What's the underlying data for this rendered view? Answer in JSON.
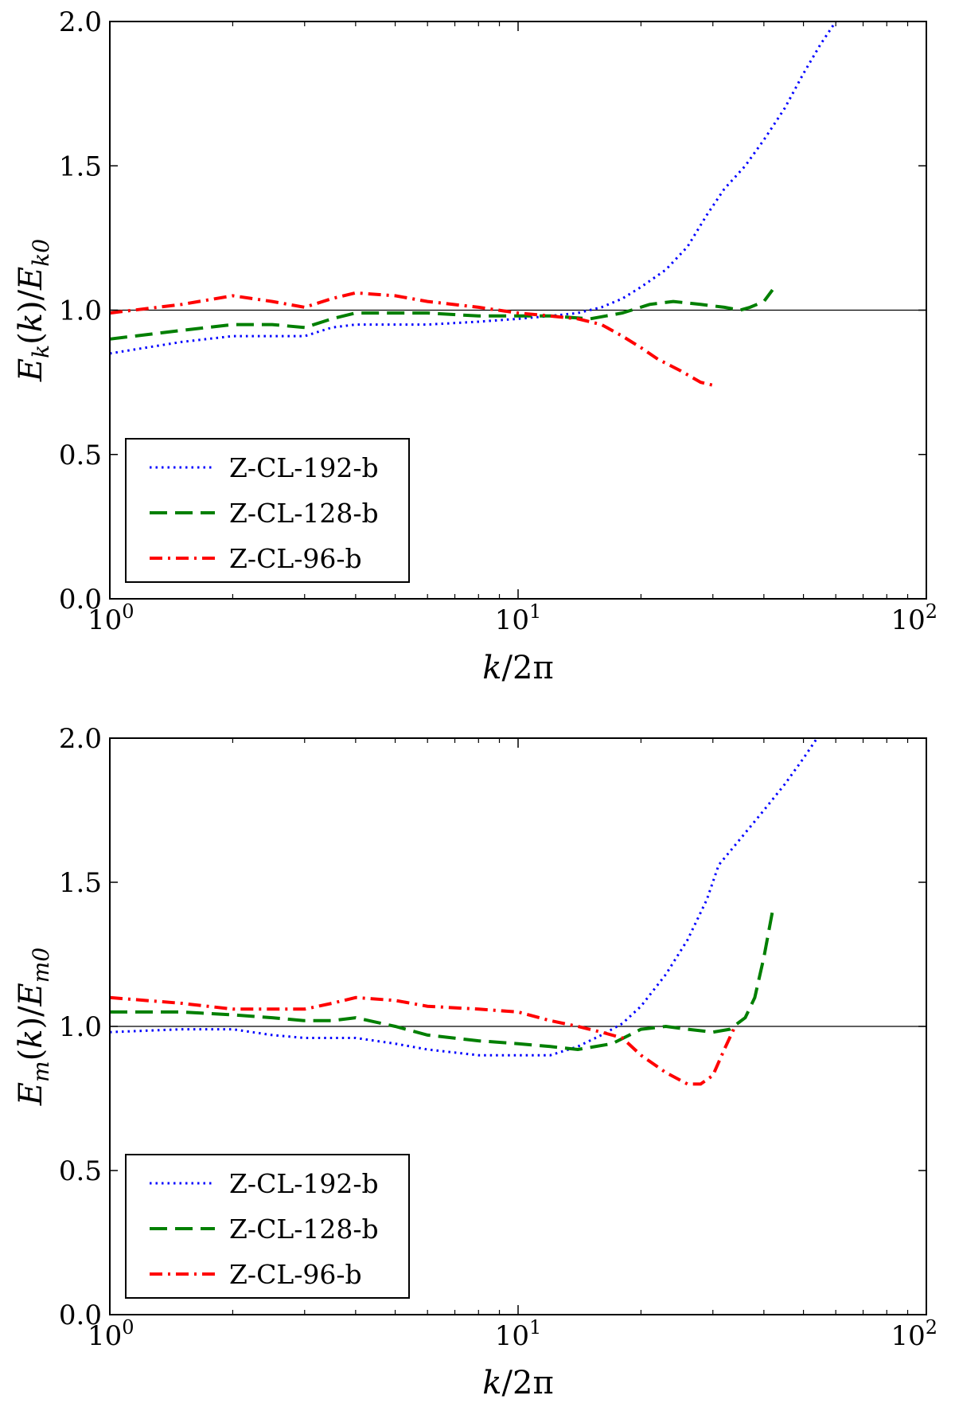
{
  "chart_data": [
    {
      "type": "line",
      "title": "",
      "xlabel": "k/2π",
      "ylabel": "E_k(k)/E_k0",
      "x_scale": "log",
      "xlim": [
        1,
        100
      ],
      "ylim": [
        0,
        2.0
      ],
      "x_ticks": [
        {
          "value": 1,
          "base": "10",
          "exp": "0"
        },
        {
          "value": 10,
          "base": "10",
          "exp": "1"
        },
        {
          "value": 100,
          "base": "10",
          "exp": "2"
        }
      ],
      "y_ticks": [
        "0.0",
        "0.5",
        "1.0",
        "1.5",
        "2.0"
      ],
      "grid": false,
      "legend_position": "lower-left",
      "reference_line": {
        "y": 1.0,
        "color": "#000000"
      },
      "series": [
        {
          "name": "Z-CL-192-b",
          "color": "#0000ff",
          "style": "dotted",
          "points": [
            [
              1,
              0.85
            ],
            [
              1.5,
              0.89
            ],
            [
              2,
              0.91
            ],
            [
              2.5,
              0.91
            ],
            [
              3,
              0.91
            ],
            [
              3.5,
              0.94
            ],
            [
              4,
              0.95
            ],
            [
              5,
              0.95
            ],
            [
              6,
              0.95
            ],
            [
              8,
              0.96
            ],
            [
              10,
              0.97
            ],
            [
              12,
              0.98
            ],
            [
              14,
              0.99
            ],
            [
              16,
              1.01
            ],
            [
              18,
              1.04
            ],
            [
              20,
              1.08
            ],
            [
              23,
              1.14
            ],
            [
              26,
              1.22
            ],
            [
              29,
              1.33
            ],
            [
              32,
              1.42
            ],
            [
              36,
              1.5
            ],
            [
              40,
              1.59
            ],
            [
              45,
              1.7
            ],
            [
              50,
              1.82
            ],
            [
              55,
              1.92
            ],
            [
              60,
              2.0
            ]
          ]
        },
        {
          "name": "Z-CL-128-b",
          "color": "#007f00",
          "style": "dashed",
          "points": [
            [
              1,
              0.9
            ],
            [
              1.5,
              0.93
            ],
            [
              2,
              0.95
            ],
            [
              2.5,
              0.95
            ],
            [
              3,
              0.94
            ],
            [
              3.5,
              0.97
            ],
            [
              4,
              0.99
            ],
            [
              5,
              0.99
            ],
            [
              6,
              0.99
            ],
            [
              8,
              0.98
            ],
            [
              10,
              0.98
            ],
            [
              12,
              0.98
            ],
            [
              15,
              0.97
            ],
            [
              18,
              0.99
            ],
            [
              21,
              1.02
            ],
            [
              24,
              1.03
            ],
            [
              28,
              1.02
            ],
            [
              32,
              1.01
            ],
            [
              35,
              1.0
            ],
            [
              37,
              1.01
            ],
            [
              40,
              1.03
            ],
            [
              42,
              1.07
            ]
          ]
        },
        {
          "name": "Z-CL-96-b",
          "color": "#ff0000",
          "style": "dashdot",
          "points": [
            [
              1,
              0.99
            ],
            [
              1.5,
              1.02
            ],
            [
              2,
              1.05
            ],
            [
              2.5,
              1.03
            ],
            [
              3,
              1.01
            ],
            [
              3.5,
              1.04
            ],
            [
              4,
              1.06
            ],
            [
              5,
              1.05
            ],
            [
              6,
              1.03
            ],
            [
              8,
              1.01
            ],
            [
              10,
              0.99
            ],
            [
              12,
              0.98
            ],
            [
              14,
              0.97
            ],
            [
              16,
              0.95
            ],
            [
              18,
              0.91
            ],
            [
              20,
              0.87
            ],
            [
              22,
              0.83
            ],
            [
              25,
              0.79
            ],
            [
              28,
              0.75
            ],
            [
              30,
              0.74
            ]
          ]
        }
      ]
    },
    {
      "type": "line",
      "title": "",
      "xlabel": "k/2π",
      "ylabel": "E_m(k)/E_m0",
      "x_scale": "log",
      "xlim": [
        1,
        100
      ],
      "ylim": [
        0,
        2.0
      ],
      "x_ticks": [
        {
          "value": 1,
          "base": "10",
          "exp": "0"
        },
        {
          "value": 10,
          "base": "10",
          "exp": "1"
        },
        {
          "value": 100,
          "base": "10",
          "exp": "2"
        }
      ],
      "y_ticks": [
        "0.0",
        "0.5",
        "1.0",
        "1.5",
        "2.0"
      ],
      "grid": false,
      "legend_position": "lower-left",
      "reference_line": {
        "y": 1.0,
        "color": "#000000"
      },
      "series": [
        {
          "name": "Z-CL-192-b",
          "color": "#0000ff",
          "style": "dotted",
          "points": [
            [
              1,
              0.98
            ],
            [
              1.5,
              0.99
            ],
            [
              2,
              0.99
            ],
            [
              2.5,
              0.97
            ],
            [
              3,
              0.96
            ],
            [
              3.5,
              0.96
            ],
            [
              4,
              0.96
            ],
            [
              5,
              0.94
            ],
            [
              6,
              0.92
            ],
            [
              8,
              0.9
            ],
            [
              10,
              0.9
            ],
            [
              12,
              0.9
            ],
            [
              14,
              0.93
            ],
            [
              16,
              0.97
            ],
            [
              18,
              1.01
            ],
            [
              20,
              1.07
            ],
            [
              23,
              1.18
            ],
            [
              26,
              1.3
            ],
            [
              29,
              1.44
            ],
            [
              31,
              1.56
            ],
            [
              35,
              1.65
            ],
            [
              40,
              1.75
            ],
            [
              45,
              1.84
            ],
            [
              50,
              1.93
            ],
            [
              54,
              2.0
            ]
          ]
        },
        {
          "name": "Z-CL-128-b",
          "color": "#007f00",
          "style": "dashed",
          "points": [
            [
              1,
              1.05
            ],
            [
              1.5,
              1.05
            ],
            [
              2,
              1.04
            ],
            [
              2.5,
              1.03
            ],
            [
              3,
              1.02
            ],
            [
              3.5,
              1.02
            ],
            [
              4,
              1.03
            ],
            [
              5,
              1.0
            ],
            [
              6,
              0.97
            ],
            [
              8,
              0.95
            ],
            [
              10,
              0.94
            ],
            [
              12,
              0.93
            ],
            [
              14,
              0.92
            ],
            [
              17,
              0.94
            ],
            [
              20,
              0.99
            ],
            [
              23,
              1.0
            ],
            [
              26,
              0.99
            ],
            [
              30,
              0.98
            ],
            [
              33,
              0.99
            ],
            [
              36,
              1.03
            ],
            [
              38,
              1.1
            ],
            [
              40,
              1.24
            ],
            [
              42,
              1.4
            ]
          ]
        },
        {
          "name": "Z-CL-96-b",
          "color": "#ff0000",
          "style": "dashdot",
          "points": [
            [
              1,
              1.1
            ],
            [
              1.5,
              1.08
            ],
            [
              2,
              1.06
            ],
            [
              2.5,
              1.06
            ],
            [
              3,
              1.06
            ],
            [
              3.5,
              1.08
            ],
            [
              4,
              1.1
            ],
            [
              5,
              1.09
            ],
            [
              6,
              1.07
            ],
            [
              8,
              1.06
            ],
            [
              10,
              1.05
            ],
            [
              12,
              1.02
            ],
            [
              14,
              1.0
            ],
            [
              16,
              0.98
            ],
            [
              18,
              0.96
            ],
            [
              20,
              0.9
            ],
            [
              23,
              0.84
            ],
            [
              26,
              0.8
            ],
            [
              28,
              0.8
            ],
            [
              30,
              0.83
            ],
            [
              32,
              0.92
            ],
            [
              34,
              1.0
            ]
          ]
        }
      ]
    }
  ]
}
